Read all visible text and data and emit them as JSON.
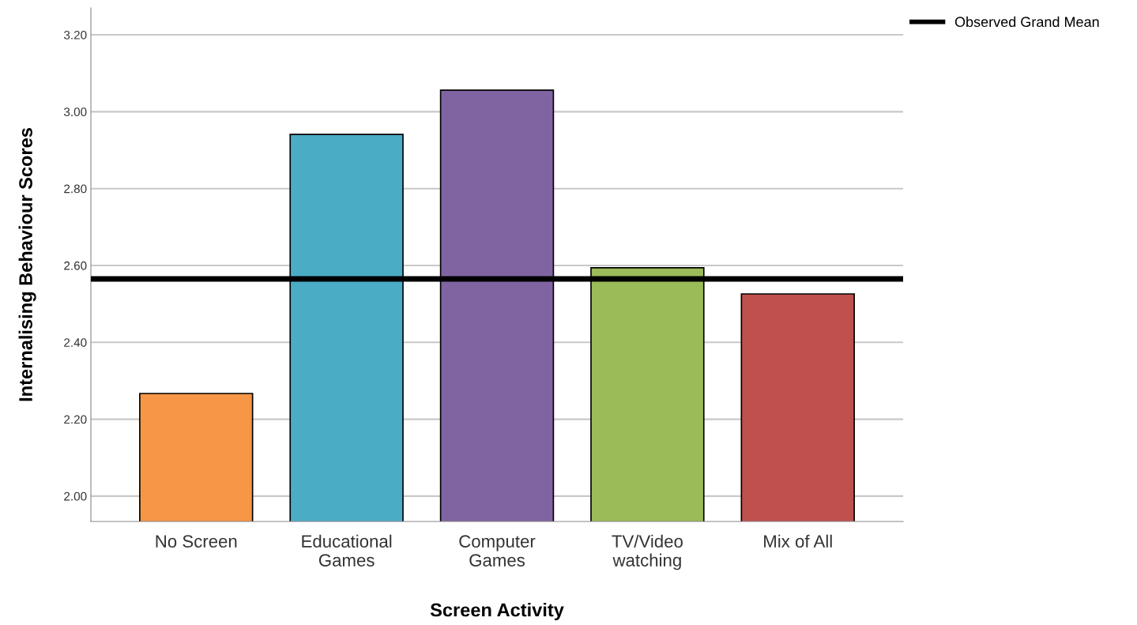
{
  "chart_data": {
    "type": "bar",
    "xlabel": "Screen Activity",
    "ylabel": "Internalising Behaviour Scores",
    "categories": [
      "No Screen",
      "Educational\nGames",
      "Computer\nGames",
      "TV/Video\nwatching",
      "Mix of All"
    ],
    "values": [
      2.267,
      2.941,
      3.056,
      2.594,
      2.526
    ],
    "colors": [
      "#f79646",
      "#4bacc6",
      "#8064a2",
      "#9bbb59",
      "#c0504d"
    ],
    "ylim": [
      1.934,
      3.27
    ],
    "yticks": [
      {
        "value": 2.0,
        "label": "2.00"
      },
      {
        "value": 2.2,
        "label": "2.20"
      },
      {
        "value": 2.4,
        "label": "2.40"
      },
      {
        "value": 2.6,
        "label": "2.60"
      },
      {
        "value": 2.8,
        "label": "2.80"
      },
      {
        "value": 3.0,
        "label": "3.00"
      },
      {
        "value": 3.2,
        "label": "3.20"
      }
    ],
    "ref_lines": [
      {
        "axis": "y",
        "value": 2.565,
        "label": "Observed Grand Mean",
        "color": "#000000"
      }
    ],
    "grid": "y",
    "legend": "top right"
  }
}
